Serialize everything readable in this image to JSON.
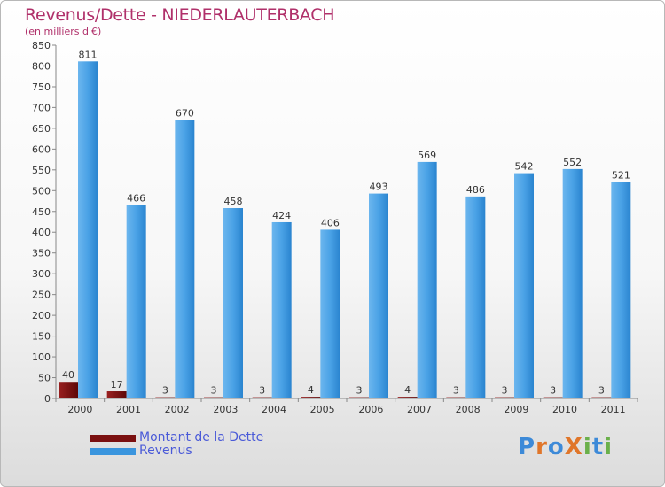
{
  "title": "Revenus/Dette - NIEDERLAUTERBACH",
  "subtitle": "(en milliers d'€)",
  "colors": {
    "dette": "#7a1010",
    "revenus": "#3a95de",
    "title": "#b0306a"
  },
  "legend": [
    {
      "name": "Montant de la Dette",
      "color": "#7a1010"
    },
    {
      "name": "Revenus",
      "color": "#3a95de"
    }
  ],
  "logo": {
    "text": "ProXiti",
    "letters": [
      "P",
      "r",
      "o",
      "X",
      "i",
      "t",
      "i"
    ],
    "letter_colors": [
      "#3d8ad8",
      "#e0762a",
      "#3d8ad8",
      "#e0762a",
      "#6ab04a",
      "#3d8ad8",
      "#6ab04a"
    ]
  },
  "chart_data": {
    "type": "bar",
    "categories": [
      "2000",
      "2001",
      "2002",
      "2003",
      "2004",
      "2005",
      "2006",
      "2007",
      "2008",
      "2009",
      "2010",
      "2011"
    ],
    "series": [
      {
        "name": "Montant de la Dette",
        "values": [
          40,
          17,
          3,
          3,
          3,
          4,
          3,
          4,
          3,
          3,
          3,
          3
        ]
      },
      {
        "name": "Revenus",
        "values": [
          811,
          466,
          670,
          458,
          424,
          406,
          493,
          569,
          486,
          542,
          552,
          521
        ]
      }
    ],
    "ylim": [
      0,
      850
    ],
    "yticks": [
      0,
      50,
      100,
      150,
      200,
      250,
      300,
      350,
      400,
      450,
      500,
      550,
      600,
      650,
      700,
      750,
      800,
      850
    ],
    "grid": false,
    "legend_position": "bottom-left"
  }
}
